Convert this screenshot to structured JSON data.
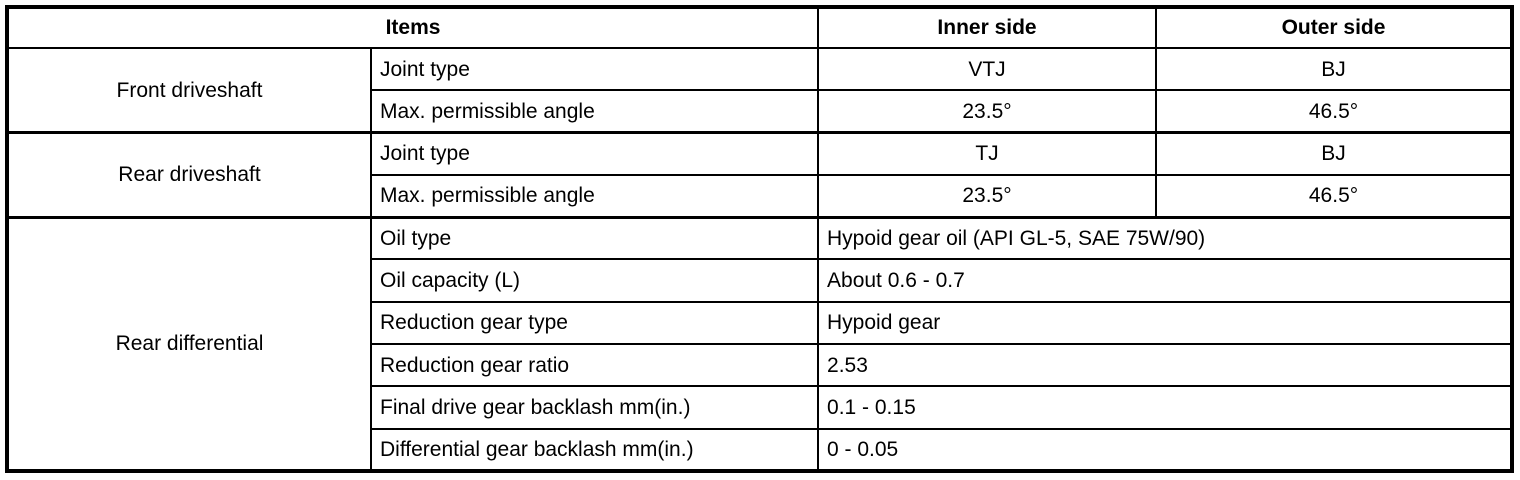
{
  "table": {
    "headers": {
      "items": "Items",
      "inner_side": "Inner side",
      "outer_side": "Outer side"
    },
    "front_driveshaft": {
      "label": "Front driveshaft",
      "rows": [
        {
          "item": "Joint type",
          "inner": "VTJ",
          "outer": "BJ"
        },
        {
          "item": "Max. permissible angle",
          "inner": "23.5°",
          "outer": "46.5°"
        }
      ]
    },
    "rear_driveshaft": {
      "label": "Rear driveshaft",
      "rows": [
        {
          "item": "Joint type",
          "inner": "TJ",
          "outer": "BJ"
        },
        {
          "item": "Max. permissible angle",
          "inner": "23.5°",
          "outer": "46.5°"
        }
      ]
    },
    "rear_differential": {
      "label": "Rear differential",
      "rows": [
        {
          "item": "Oil type",
          "value": "Hypoid gear oil (API GL-5, SAE 75W/90)"
        },
        {
          "item": "Oil capacity (L)",
          "value": "About 0.6 - 0.7"
        },
        {
          "item": "Reduction gear type",
          "value": "Hypoid gear"
        },
        {
          "item": "Reduction gear ratio",
          "value": "2.53"
        },
        {
          "item": "Final drive gear backlash mm(in.)",
          "value": "0.1 - 0.15"
        },
        {
          "item": "Differential gear backlash mm(in.)",
          "value": "0 - 0.05"
        }
      ]
    },
    "colors": {
      "border": "#000000",
      "text": "#000000",
      "background": "#ffffff"
    }
  }
}
